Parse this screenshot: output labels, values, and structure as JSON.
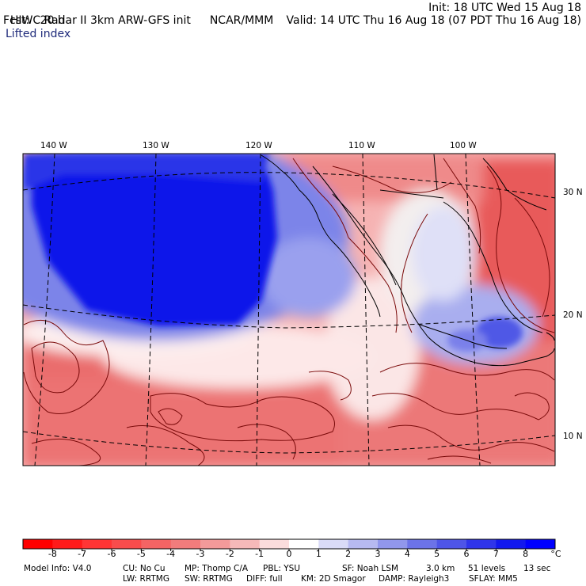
{
  "header": {
    "model_title": "HIWC Radar II 3km ARW-GFS init",
    "org": "NCAR/MMM",
    "init": "Init: 18 UTC Wed 15 Aug 18",
    "forecast": "Fcst:   20 h",
    "valid": "Valid: 14 UTC Thu 16 Aug 18 (07 PDT Thu 16 Aug 18)",
    "field": "Lifted index"
  },
  "map": {
    "longitude_labels": [
      "140 W",
      "130 W",
      "120 W",
      "110 W",
      "100 W"
    ],
    "latitude_labels": [
      "30 N",
      "20 N",
      "10 N"
    ],
    "colors": {
      "strong_blue": "#0a17e8",
      "mid_blue": "#5a66e6",
      "light_blue": "#c9cdf4",
      "neutral": "#fff2f2",
      "light_red": "#f8c2c2",
      "mid_red": "#ef8080",
      "strong_red": "#e23232",
      "contour": "#7a0a0a",
      "coast": "#000000"
    }
  },
  "colorbar": {
    "ticks": [
      "-8",
      "-7",
      "-6",
      "-5",
      "-4",
      "-3",
      "-2",
      "-1",
      "0",
      "1",
      "2",
      "3",
      "4",
      "5",
      "6",
      "7",
      "8"
    ],
    "unit": "°C",
    "colors": [
      "#ff0000",
      "#ff1a1a",
      "#ff3535",
      "#f84c4c",
      "#f46464",
      "#f27c7c",
      "#f39a9a",
      "#f6b9b9",
      "#fbdcdc",
      "#ffffff",
      "#dadbf7",
      "#b7baf1",
      "#9197ec",
      "#6c73e8",
      "#4e55e7",
      "#2f35ea",
      "#1218ee",
      "#0000ff"
    ]
  },
  "footer": {
    "line1": [
      "Model Info: V4.0",
      "CU: No Cu",
      "MP: Thomp C/A",
      "PBL: YSU",
      "SF: Noah LSM",
      "3.0 km",
      "51 levels",
      "13 sec"
    ],
    "line2": [
      "LW: RRTMG",
      "SW: RRTMG",
      "DIFF: full",
      "KM: 2D Smagor",
      "DAMP: Rayleigh3",
      "SFLAY: MM5"
    ]
  }
}
